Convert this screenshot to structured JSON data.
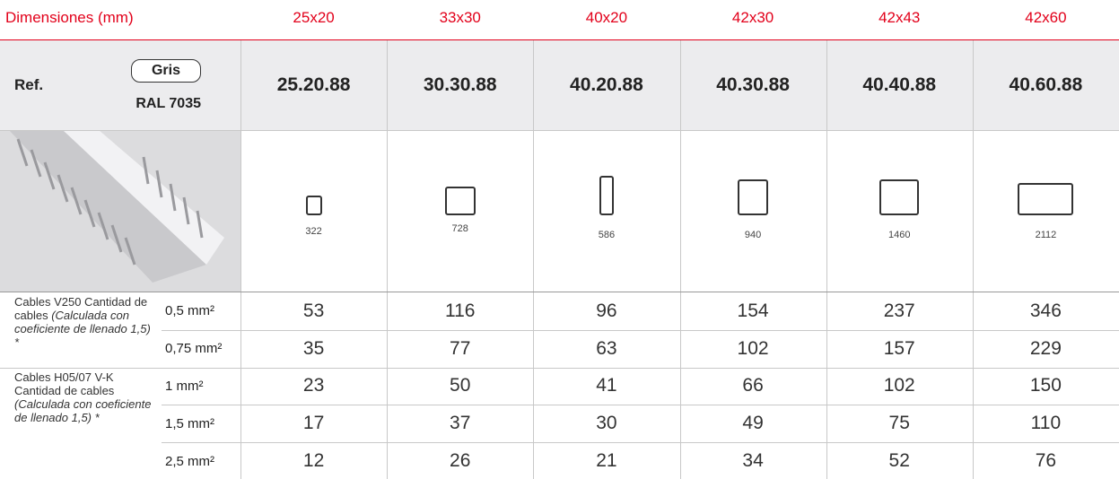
{
  "header": {
    "label": "Dimensiones (mm)",
    "dimensions": [
      "25x20",
      "33x30",
      "40x20",
      "42x30",
      "42x43",
      "42x60"
    ]
  },
  "ref_row": {
    "label": "Ref.",
    "color_badge": "Gris",
    "ral": "RAL 7035",
    "refs": [
      "25.20.88",
      "30.30.88",
      "40.20.88",
      "40.30.88",
      "40.40.88",
      "40.60.88"
    ]
  },
  "section_row": {
    "areas": [
      322,
      728,
      586,
      940,
      1460,
      2112
    ]
  },
  "groups": [
    {
      "label": "Cables V250 Cantidad de cables",
      "note": "(Calculada con coeficiente de llenado 1,5) *",
      "rows": [
        {
          "section": "0,5 mm²",
          "values": [
            53,
            116,
            96,
            154,
            237,
            346
          ]
        },
        {
          "section": "0,75 mm²",
          "values": [
            35,
            77,
            63,
            102,
            157,
            229
          ]
        }
      ]
    },
    {
      "label": "Cables H05/07 V-K Cantidad de cables",
      "note": "(Calculada con coeficiente de llenado 1,5) *",
      "rows": [
        {
          "section": "1 mm²",
          "values": [
            23,
            50,
            41,
            66,
            102,
            150
          ]
        },
        {
          "section": "1,5 mm²",
          "values": [
            17,
            37,
            30,
            49,
            75,
            110
          ]
        },
        {
          "section": "2,5 mm²",
          "values": [
            12,
            26,
            21,
            34,
            52,
            76
          ]
        }
      ]
    }
  ]
}
